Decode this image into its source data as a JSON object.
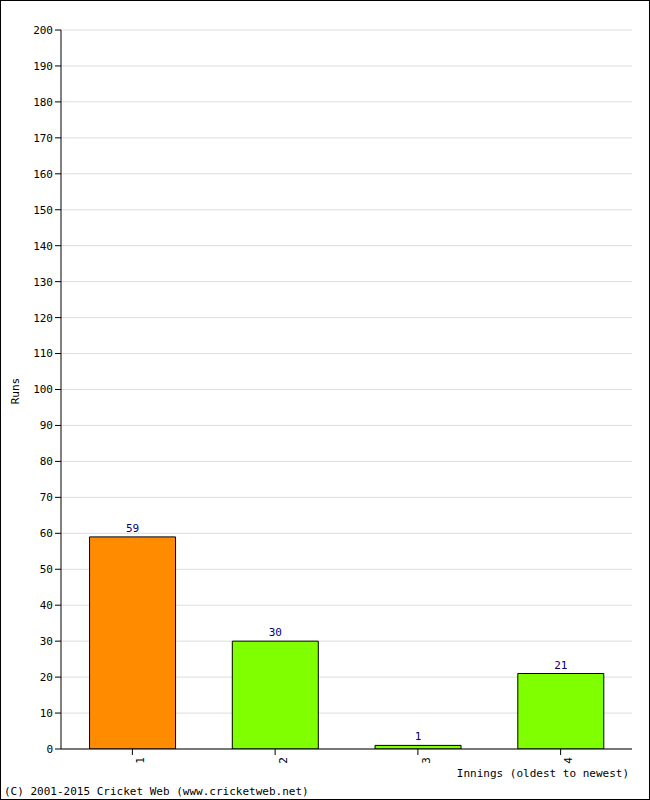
{
  "chart_data": {
    "type": "bar",
    "categories": [
      "1",
      "2",
      "3",
      "4"
    ],
    "values": [
      59,
      30,
      1,
      21
    ],
    "colors": [
      "#ff8c00",
      "#7fff00",
      "#7fff00",
      "#7fff00"
    ],
    "ylim": [
      0,
      200
    ],
    "yticks": [
      0,
      10,
      20,
      30,
      40,
      50,
      60,
      70,
      80,
      90,
      100,
      110,
      120,
      130,
      140,
      150,
      160,
      170,
      180,
      190,
      200
    ],
    "grid": true,
    "data_labels": true,
    "ylabel": "Runs",
    "xlabel": "Innings (oldest to newest)",
    "annotation": "(C) 2001-2015 Cricket Web (www.cricketweb.net)"
  }
}
